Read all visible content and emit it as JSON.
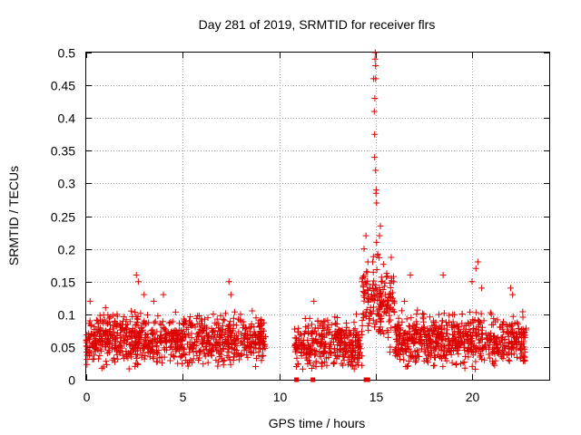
{
  "chart_data": {
    "type": "scatter",
    "title": "Day 281 of 2019, SRMTID for receiver flrs",
    "xlabel": "GPS time / hours",
    "ylabel": "SRMTID / TECUs",
    "xlim": [
      0,
      24
    ],
    "ylim": [
      0,
      0.5
    ],
    "xticks": [
      0,
      5,
      10,
      15,
      20
    ],
    "xtick_labels": [
      "0",
      "5",
      "10",
      "15",
      "20"
    ],
    "yticks": [
      0,
      0.05,
      0.1,
      0.15,
      0.2,
      0.25,
      0.3,
      0.35,
      0.4,
      0.45,
      0.5
    ],
    "ytick_labels": [
      "0",
      "0.05",
      "0.1",
      "0.15",
      "0.2",
      "0.25",
      "0.3",
      "0.35",
      "0.4",
      "0.45",
      "0.5"
    ],
    "grid": true,
    "marker": "plus",
    "color": "#dd0000",
    "segments": [
      {
        "x0": 0.0,
        "x1": 9.3,
        "base": 0.06,
        "spread": 0.03
      },
      {
        "x0": 10.8,
        "x1": 14.3,
        "base": 0.055,
        "spread": 0.03
      },
      {
        "x0": 14.3,
        "x1": 16.0,
        "base": 0.12,
        "spread": 0.05
      },
      {
        "x0": 16.0,
        "x1": 22.8,
        "base": 0.06,
        "spread": 0.03
      }
    ],
    "points": [
      [
        0.2,
        0.12
      ],
      [
        0.6,
        0.09
      ],
      [
        1.0,
        0.11
      ],
      [
        1.6,
        0.1
      ],
      [
        2.6,
        0.16
      ],
      [
        2.7,
        0.15
      ],
      [
        3.0,
        0.13
      ],
      [
        3.5,
        0.12
      ],
      [
        4.0,
        0.13
      ],
      [
        4.3,
        0.06
      ],
      [
        5.0,
        0.07
      ],
      [
        6.0,
        0.09
      ],
      [
        7.4,
        0.15
      ],
      [
        7.5,
        0.13
      ],
      [
        8.0,
        0.1
      ],
      [
        9.0,
        0.09
      ],
      [
        11.0,
        0.05
      ],
      [
        11.3,
        0.07
      ],
      [
        11.8,
        0.12
      ],
      [
        12.0,
        0.09
      ],
      [
        12.5,
        0.08
      ],
      [
        13.0,
        0.07
      ],
      [
        13.5,
        0.08
      ],
      [
        14.0,
        0.1
      ],
      [
        14.3,
        0.15
      ],
      [
        14.4,
        0.2
      ],
      [
        14.5,
        0.22
      ],
      [
        14.6,
        0.18
      ],
      [
        14.7,
        0.14
      ],
      [
        14.8,
        0.13
      ],
      [
        14.85,
        0.18
      ],
      [
        14.9,
        0.46
      ],
      [
        14.93,
        0.41
      ],
      [
        14.96,
        0.43
      ],
      [
        14.97,
        0.49
      ],
      [
        14.98,
        0.5
      ],
      [
        15.0,
        0.46
      ],
      [
        15.0,
        0.48
      ],
      [
        14.95,
        0.375
      ],
      [
        14.95,
        0.34
      ],
      [
        15.0,
        0.32
      ],
      [
        15.02,
        0.285
      ],
      [
        15.03,
        0.29
      ],
      [
        15.05,
        0.27
      ],
      [
        15.05,
        0.21
      ],
      [
        15.1,
        0.19
      ],
      [
        15.2,
        0.22
      ],
      [
        15.25,
        0.235
      ],
      [
        15.3,
        0.15
      ],
      [
        15.5,
        0.13
      ],
      [
        15.8,
        0.11
      ],
      [
        16.0,
        0.08
      ],
      [
        16.5,
        0.12
      ],
      [
        16.8,
        0.16
      ],
      [
        17.5,
        0.1
      ],
      [
        18.0,
        0.09
      ],
      [
        18.5,
        0.16
      ],
      [
        19.0,
        0.08
      ],
      [
        19.5,
        0.07
      ],
      [
        20.0,
        0.15
      ],
      [
        20.2,
        0.17
      ],
      [
        20.3,
        0.18
      ],
      [
        20.5,
        0.14
      ],
      [
        21.0,
        0.1
      ],
      [
        21.5,
        0.08
      ],
      [
        22.0,
        0.14
      ],
      [
        22.1,
        0.13
      ],
      [
        22.5,
        0.05
      ],
      [
        22.7,
        0.03
      ]
    ],
    "zero_points": [
      10.9,
      11.75,
      14.5,
      14.6
    ]
  }
}
